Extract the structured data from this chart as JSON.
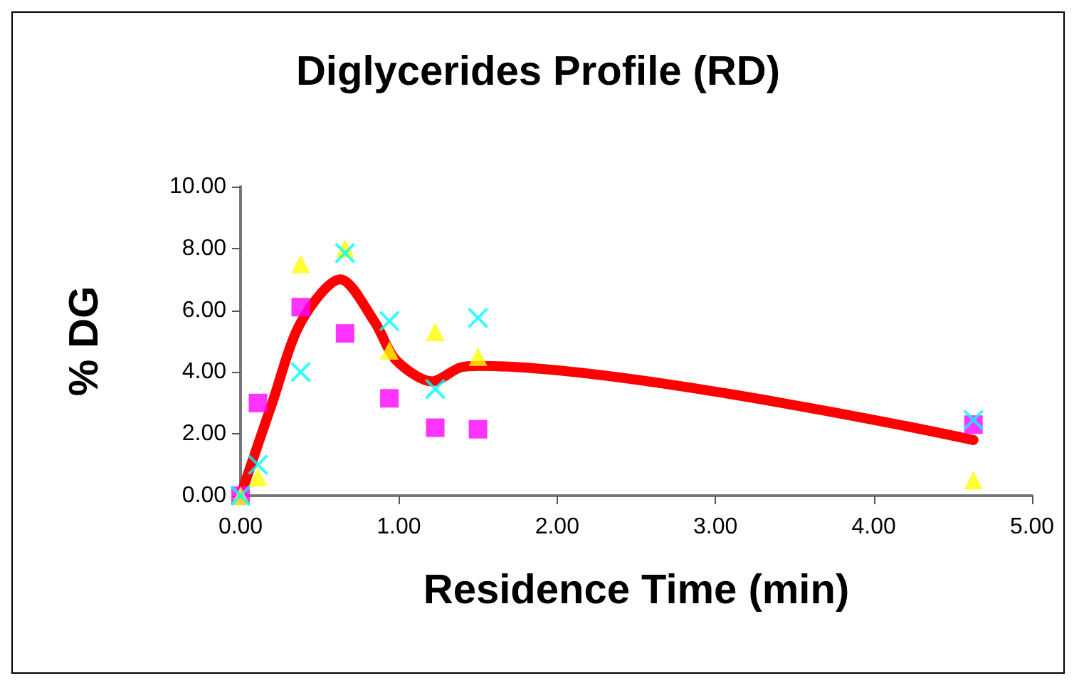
{
  "chart_data": {
    "type": "scatter",
    "title": "Diglycerides Profile (RD)",
    "xlabel": "Residence Time (min)",
    "ylabel": "% DG",
    "xlim": [
      0,
      5
    ],
    "xticks": [
      {
        "value": 0,
        "label": "0.00"
      },
      {
        "value": 1,
        "label": "1.00"
      },
      {
        "value": 2,
        "label": "2.00"
      },
      {
        "value": 3,
        "label": "3.00"
      },
      {
        "value": 4,
        "label": "4.00"
      },
      {
        "value": 5,
        "label": "5.00"
      }
    ],
    "ylim": [
      0,
      10
    ],
    "yticks": [
      {
        "value": 0,
        "label": "0.00"
      },
      {
        "value": 2,
        "label": "2.00"
      },
      {
        "value": 4,
        "label": "4.00"
      },
      {
        "value": 6,
        "label": "6.00"
      },
      {
        "value": 8,
        "label": "8.00"
      },
      {
        "value": 10,
        "label": "10.00"
      }
    ],
    "grid": false,
    "series": [
      {
        "type": "line",
        "color": "#ff0000",
        "marker": "none",
        "line_style": "solid",
        "x": [
          0,
          0.2,
          0.38,
          0.63,
          0.85,
          0.98,
          1.21,
          1.39,
          1.51,
          4.63
        ],
        "values": [
          0,
          3.0,
          5.6,
          7.0,
          5.6,
          4.4,
          3.7,
          4.15,
          4.2,
          1.8
        ]
      },
      {
        "color": "#ff00ff",
        "marker": "square",
        "x": [
          0,
          0.11,
          0.38,
          0.66,
          0.94,
          1.23,
          1.5,
          4.63
        ],
        "values": [
          0,
          3.0,
          6.1,
          5.25,
          3.15,
          2.2,
          2.15,
          2.3
        ]
      },
      {
        "color": "#ffff00",
        "marker": "triangle",
        "x": [
          0,
          0.11,
          0.38,
          0.66,
          0.94,
          1.23,
          1.5,
          4.63
        ],
        "values": [
          0,
          0.6,
          7.5,
          8.0,
          4.7,
          5.3,
          4.5,
          0.5
        ]
      },
      {
        "color": "#00ffff",
        "marker": "cross",
        "x": [
          0,
          0.11,
          0.38,
          0.66,
          0.94,
          1.23,
          1.5,
          4.63
        ],
        "values": [
          0,
          1.0,
          4.0,
          7.85,
          5.65,
          3.45,
          5.75,
          2.45
        ]
      }
    ]
  }
}
